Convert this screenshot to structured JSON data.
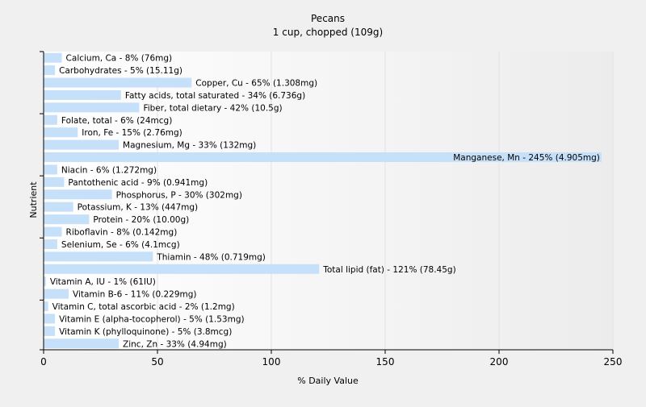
{
  "chart_data": {
    "type": "bar",
    "orientation": "horizontal",
    "title": "Pecans",
    "subtitle": "1 cup, chopped (109g)",
    "xlabel": "% Daily Value",
    "ylabel": "Nutrient",
    "xlim": [
      0,
      250
    ],
    "xticks": [
      0,
      50,
      100,
      150,
      200,
      250
    ],
    "grid": true,
    "bar_color": "#c6e0fa",
    "categories": [
      "Calcium, Ca - 8% (76mg)",
      "Carbohydrates - 5% (15.11g)",
      "Copper, Cu - 65% (1.308mg)",
      "Fatty acids, total saturated - 34% (6.736g)",
      "Fiber, total dietary - 42% (10.5g)",
      "Folate, total - 6% (24mcg)",
      "Iron, Fe - 15% (2.76mg)",
      "Magnesium, Mg - 33% (132mg)",
      "Manganese, Mn - 245% (4.905mg)",
      "Niacin - 6% (1.272mg)",
      "Pantothenic acid - 9% (0.941mg)",
      "Phosphorus, P - 30% (302mg)",
      "Potassium, K - 13% (447mg)",
      "Protein - 20% (10.00g)",
      "Riboflavin - 8% (0.142mg)",
      "Selenium, Se - 6% (4.1mcg)",
      "Thiamin - 48% (0.719mg)",
      "Total lipid (fat) - 121% (78.45g)",
      "Vitamin A, IU - 1% (61IU)",
      "Vitamin B-6 - 11% (0.229mg)",
      "Vitamin C, total ascorbic acid - 2% (1.2mg)",
      "Vitamin E (alpha-tocopherol) - 5% (1.53mg)",
      "Vitamin K (phylloquinone) - 5% (3.8mcg)",
      "Zinc, Zn - 33% (4.94mg)"
    ],
    "values": [
      8,
      5,
      65,
      34,
      42,
      6,
      15,
      33,
      245,
      6,
      9,
      30,
      13,
      20,
      8,
      6,
      48,
      121,
      1,
      11,
      2,
      5,
      5,
      33
    ]
  }
}
